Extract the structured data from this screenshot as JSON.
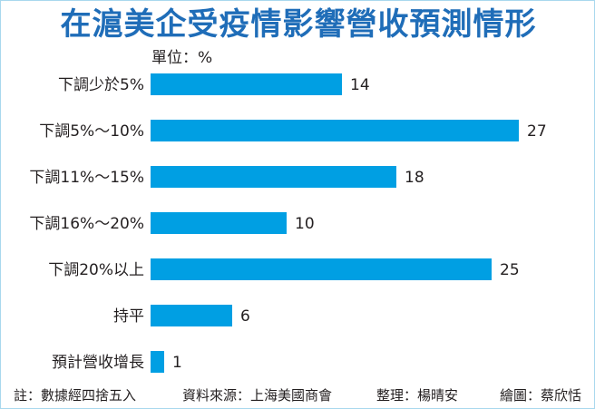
{
  "title": "在滬美企受疫情影響營收預測情形",
  "unit_label": "單位：%",
  "colors": {
    "title": "#1f6db8",
    "bar": "#009fe3",
    "border": "#a8d8ee",
    "text": "#231f20"
  },
  "chart_data": {
    "type": "bar",
    "orientation": "horizontal",
    "title": "在滬美企受疫情影響營收預測情形",
    "subtitle": "單位：%",
    "categories": [
      "下調少於5%",
      "下調5%～10%",
      "下調11%～15%",
      "下調16%～20%",
      "下調20%以上",
      "持平",
      "預計營收增長"
    ],
    "values": [
      14,
      27,
      18,
      10,
      25,
      6,
      1
    ],
    "xlabel": "",
    "ylabel": "",
    "xlim": [
      0,
      27
    ],
    "grid": false,
    "legend": null,
    "data_labels": true
  },
  "rows": [
    {
      "label": "下調少於5%",
      "value": "14"
    },
    {
      "label": "下調5%～10%",
      "value": "27"
    },
    {
      "label": "下調11%～15%",
      "value": "18"
    },
    {
      "label": "下調16%～20%",
      "value": "10"
    },
    {
      "label": "下調20%以上",
      "value": "25"
    },
    {
      "label": "持平",
      "value": "6"
    },
    {
      "label": "預計營收增長",
      "value": "1"
    }
  ],
  "footer": {
    "note": "註：數據經四捨五入",
    "source": "資料來源：上海美國商會",
    "editor": "整理：楊晴安",
    "illustrator": "繪圖：蔡欣恬"
  }
}
